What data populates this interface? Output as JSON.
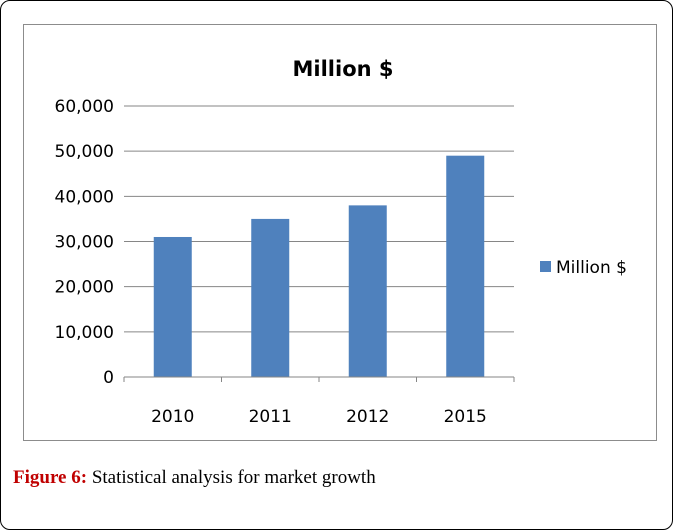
{
  "chart_data": {
    "type": "bar",
    "title": "Million $",
    "categories": [
      "2010",
      "2011",
      "2012",
      "2015"
    ],
    "series": [
      {
        "name": "Million $",
        "values": [
          31000,
          35000,
          38000,
          49000
        ],
        "color": "#4f81bd"
      }
    ],
    "ylim": [
      0,
      60000
    ],
    "yticks": [
      0,
      10000,
      20000,
      30000,
      40000,
      50000,
      60000
    ],
    "ytick_labels": [
      "0",
      "10,000",
      "20,000",
      "30,000",
      "40,000",
      "50,000",
      "60,000"
    ],
    "grid": true,
    "legend_position": "right"
  },
  "caption": {
    "label": "Figure 6:",
    "text": "Statistical analysis for market growth"
  },
  "colors": {
    "bar": "#4f81bd",
    "caption_label": "#c00000",
    "gridline": "#868686"
  }
}
